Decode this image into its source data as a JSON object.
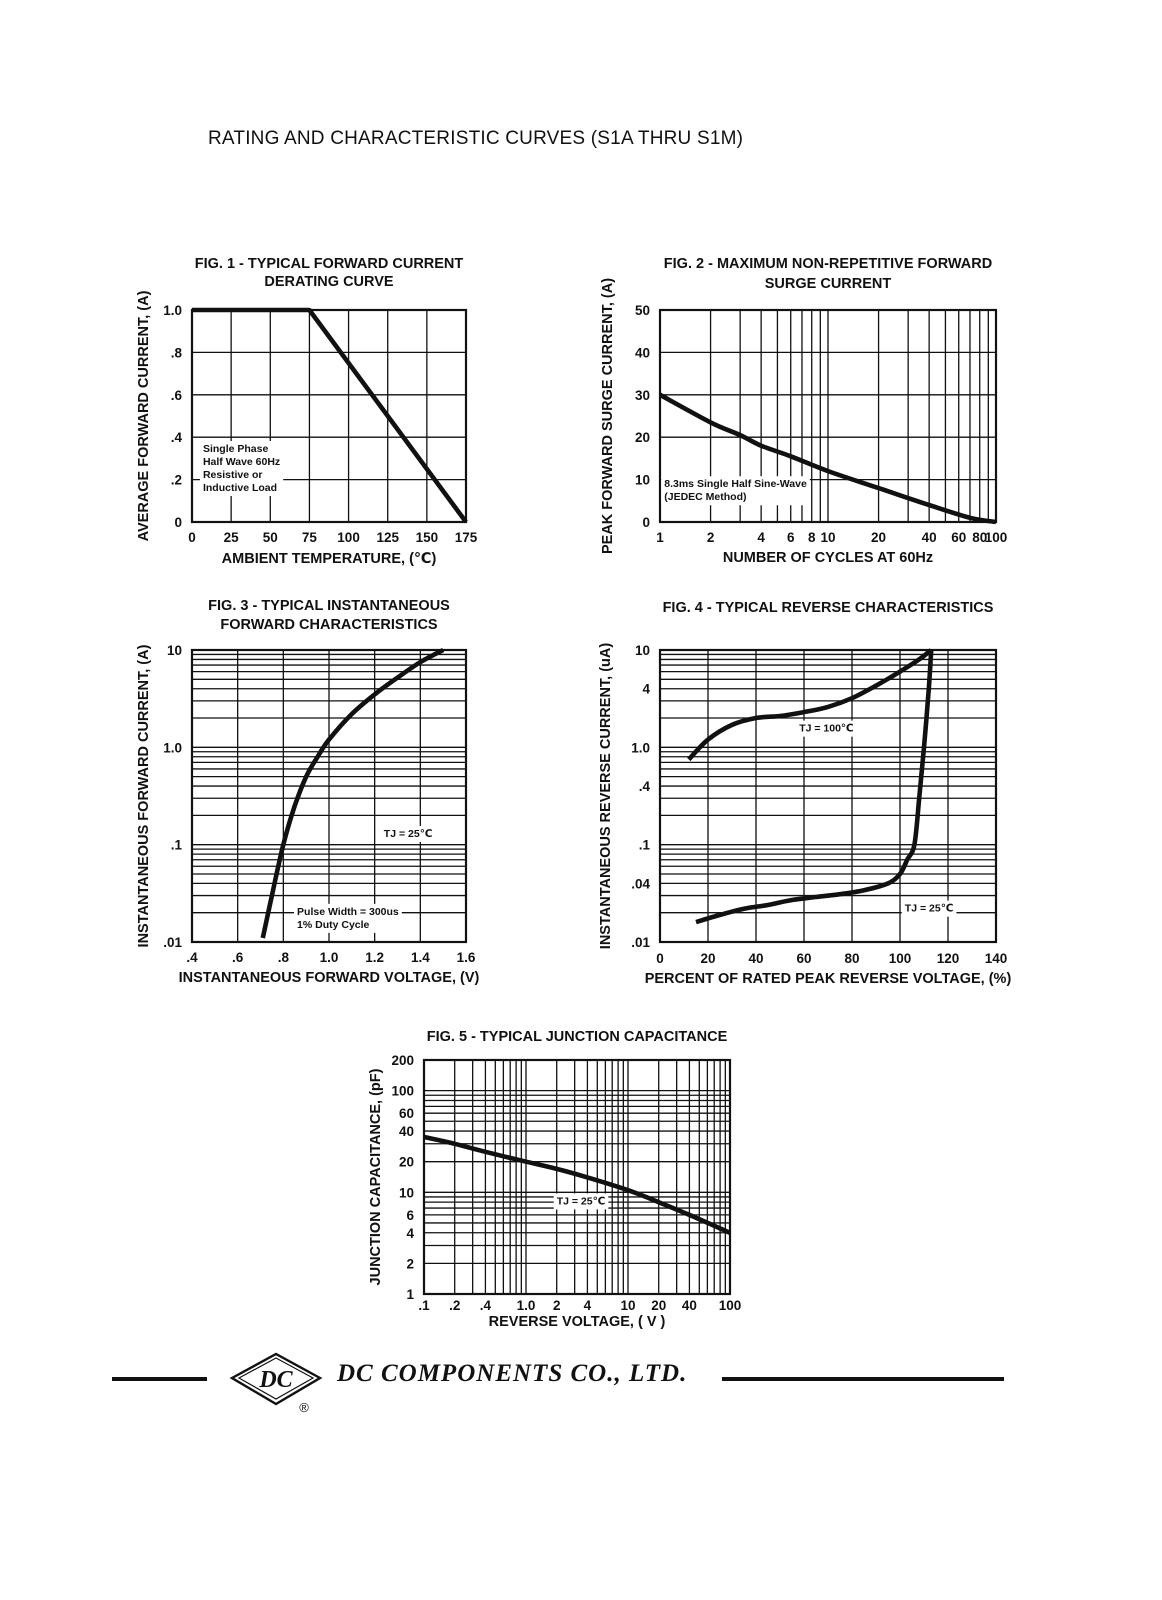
{
  "page": {
    "title": "RATING AND CHARACTERISTIC CURVES (S1A THRU S1M)"
  },
  "footer": {
    "company": "DC COMPONENTS CO., LTD.",
    "logo_text": "DC",
    "registered_mark": "®"
  },
  "chart_data": [
    {
      "id": "fig1",
      "type": "line",
      "title_lines": [
        "FIG. 1 - TYPICAL FORWARD CURRENT",
        "DERATING CURVE"
      ],
      "xlabel": "AMBIENT TEMPERATURE, (℃)",
      "ylabel": "AVERAGE FORWARD CURRENT, (A)",
      "xscale": "linear",
      "yscale": "linear",
      "xlim": [
        0,
        175
      ],
      "ylim": [
        0,
        1.0
      ],
      "xgrid": [
        0,
        25,
        50,
        75,
        100,
        125,
        150,
        175
      ],
      "ygrid": [
        0,
        0.2,
        0.4,
        0.6,
        0.8,
        1.0
      ],
      "xticks": [
        {
          "v": 0,
          "label": "0"
        },
        {
          "v": 25,
          "label": "25"
        },
        {
          "v": 50,
          "label": "50"
        },
        {
          "v": 75,
          "label": "75"
        },
        {
          "v": 100,
          "label": "100"
        },
        {
          "v": 125,
          "label": "125"
        },
        {
          "v": 150,
          "label": "150"
        },
        {
          "v": 175,
          "label": "175"
        }
      ],
      "yticks": [
        {
          "v": 0,
          "label": "0"
        },
        {
          "v": 0.2,
          "label": ".2"
        },
        {
          "v": 0.4,
          "label": ".4"
        },
        {
          "v": 0.6,
          "label": ".6"
        },
        {
          "v": 0.8,
          "label": ".8"
        },
        {
          "v": 1.0,
          "label": "1.0"
        }
      ],
      "series": [
        {
          "name": "derating",
          "x": [
            0,
            75,
            175
          ],
          "y": [
            1.0,
            1.0,
            0
          ]
        }
      ],
      "notes": [
        {
          "lines": [
            "Single Phase",
            "Half Wave 60Hz",
            "Resistive or",
            "Inductive Load"
          ],
          "x": 7,
          "y": 0.33
        }
      ]
    },
    {
      "id": "fig2",
      "type": "line",
      "title_lines": [
        "FIG. 2 - MAXIMUM NON-REPETITIVE FORWARD",
        "SURGE CURRENT"
      ],
      "xlabel": "NUMBER OF CYCLES AT 60Hz",
      "ylabel": "PEAK FORWARD SURGE CURRENT, (A)",
      "xscale": "log",
      "yscale": "linear",
      "xlim": [
        1,
        100
      ],
      "ylim": [
        0,
        50
      ],
      "xgrid": [
        1,
        2,
        3,
        4,
        5,
        6,
        7,
        8,
        9,
        10,
        20,
        30,
        40,
        50,
        60,
        70,
        80,
        90,
        100
      ],
      "ygrid": [
        0,
        10,
        20,
        30,
        40,
        50
      ],
      "xticks": [
        {
          "v": 1,
          "label": "1"
        },
        {
          "v": 2,
          "label": "2"
        },
        {
          "v": 4,
          "label": "4"
        },
        {
          "v": 6,
          "label": "6"
        },
        {
          "v": 8,
          "label": "8"
        },
        {
          "v": 10,
          "label": "10"
        },
        {
          "v": 20,
          "label": "20"
        },
        {
          "v": 40,
          "label": "40"
        },
        {
          "v": 60,
          "label": "60"
        },
        {
          "v": 80,
          "label": "80"
        },
        {
          "v": 100,
          "label": "100"
        }
      ],
      "yticks": [
        {
          "v": 0,
          "label": "0"
        },
        {
          "v": 10,
          "label": "10"
        },
        {
          "v": 20,
          "label": "20"
        },
        {
          "v": 30,
          "label": "30"
        },
        {
          "v": 40,
          "label": "40"
        },
        {
          "v": 50,
          "label": "50"
        }
      ],
      "series": [
        {
          "name": "surge",
          "x": [
            1,
            2,
            3,
            4,
            6,
            10,
            20,
            40,
            70,
            100
          ],
          "y": [
            30,
            23.5,
            20.5,
            18,
            15.5,
            12,
            8,
            4,
            1,
            0
          ]
        }
      ],
      "notes": [
        {
          "lines": [
            "8.3ms Single Half Sine-Wave",
            "(JEDEC Method)"
          ],
          "x": 1.06,
          "y": 8.2
        }
      ]
    },
    {
      "id": "fig3",
      "type": "line",
      "title_lines": [
        "FIG. 3 - TYPICAL INSTANTANEOUS",
        "FORWARD CHARACTERISTICS"
      ],
      "xlabel": "INSTANTANEOUS FORWARD VOLTAGE, (V)",
      "ylabel": "INSTANTANEOUS FORWARD CURRENT, (A)",
      "xscale": "linear",
      "yscale": "log",
      "xlim": [
        0.4,
        1.6
      ],
      "ylim": [
        0.01,
        10
      ],
      "xgrid": [
        0.4,
        0.6,
        0.8,
        1.0,
        1.2,
        1.4,
        1.6
      ],
      "ygrid": [
        0.01,
        0.02,
        0.03,
        0.04,
        0.05,
        0.06,
        0.07,
        0.08,
        0.09,
        0.1,
        0.2,
        0.3,
        0.4,
        0.5,
        0.6,
        0.7,
        0.8,
        0.9,
        1,
        2,
        3,
        4,
        5,
        6,
        7,
        8,
        9,
        10
      ],
      "xticks": [
        {
          "v": 0.4,
          "label": ".4"
        },
        {
          "v": 0.6,
          "label": ".6"
        },
        {
          "v": 0.8,
          "label": ".8"
        },
        {
          "v": 1.0,
          "label": "1.0"
        },
        {
          "v": 1.2,
          "label": "1.2"
        },
        {
          "v": 1.4,
          "label": "1.4"
        },
        {
          "v": 1.6,
          "label": "1.6"
        }
      ],
      "yticks": [
        {
          "v": 0.01,
          "label": ".01"
        },
        {
          "v": 0.1,
          "label": ".1"
        },
        {
          "v": 1,
          "label": "1.0"
        },
        {
          "v": 10,
          "label": "10"
        }
      ],
      "series": [
        {
          "name": "TJ = 25C",
          "x": [
            0.71,
            0.75,
            0.8,
            0.85,
            0.9,
            0.95,
            1.0,
            1.1,
            1.2,
            1.3,
            1.4,
            1.5
          ],
          "y": [
            0.011,
            0.03,
            0.1,
            0.25,
            0.5,
            0.8,
            1.2,
            2.2,
            3.5,
            5.2,
            7.5,
            10
          ]
        }
      ],
      "notes": [
        {
          "lines": [
            "TJ = 25℃"
          ],
          "x": 1.24,
          "y": 0.12
        },
        {
          "lines": [
            "Pulse Width = 300us",
            "1% Duty Cycle"
          ],
          "x": 0.86,
          "y": 0.019
        }
      ]
    },
    {
      "id": "fig4",
      "type": "line",
      "title_lines": [
        "FIG. 4 - TYPICAL REVERSE CHARACTERISTICS"
      ],
      "xlabel": "PERCENT OF RATED PEAK REVERSE VOLTAGE, (%)",
      "ylabel": "INSTANTANEOUS REVERSE CURRENT, (uA)",
      "xscale": "linear",
      "yscale": "log",
      "xlim": [
        0,
        140
      ],
      "ylim": [
        0.01,
        10
      ],
      "xgrid": [
        0,
        20,
        40,
        60,
        80,
        100,
        120,
        140
      ],
      "ygrid": [
        0.01,
        0.02,
        0.03,
        0.04,
        0.05,
        0.06,
        0.07,
        0.08,
        0.09,
        0.1,
        0.2,
        0.3,
        0.4,
        0.5,
        0.6,
        0.7,
        0.8,
        0.9,
        1,
        2,
        3,
        4,
        5,
        6,
        7,
        8,
        9,
        10
      ],
      "xticks": [
        {
          "v": 0,
          "label": "0"
        },
        {
          "v": 20,
          "label": "20"
        },
        {
          "v": 40,
          "label": "40"
        },
        {
          "v": 60,
          "label": "60"
        },
        {
          "v": 80,
          "label": "80"
        },
        {
          "v": 100,
          "label": "100"
        },
        {
          "v": 120,
          "label": "120"
        },
        {
          "v": 140,
          "label": "140"
        }
      ],
      "yticks": [
        {
          "v": 0.01,
          "label": ".01"
        },
        {
          "v": 0.04,
          "label": ".04"
        },
        {
          "v": 0.1,
          "label": ".1"
        },
        {
          "v": 0.4,
          "label": ".4"
        },
        {
          "v": 1,
          "label": "1.0"
        },
        {
          "v": 4,
          "label": "4"
        },
        {
          "v": 10,
          "label": "10"
        }
      ],
      "series": [
        {
          "name": "TJ = 100C",
          "x": [
            12,
            20,
            30,
            40,
            50,
            60,
            70,
            80,
            90,
            100,
            108,
            113
          ],
          "y": [
            0.75,
            1.2,
            1.7,
            2.0,
            2.1,
            2.3,
            2.6,
            3.2,
            4.3,
            6.0,
            8.0,
            10
          ]
        },
        {
          "name": "TJ = 25C",
          "x": [
            15,
            25,
            35,
            45,
            55,
            65,
            75,
            85,
            95,
            100,
            103,
            106,
            108,
            110,
            112,
            113
          ],
          "y": [
            0.016,
            0.019,
            0.022,
            0.024,
            0.027,
            0.029,
            0.031,
            0.034,
            0.04,
            0.05,
            0.07,
            0.1,
            0.3,
            1.0,
            4.0,
            10
          ]
        }
      ],
      "notes": [
        {
          "lines": [
            "TJ = 100℃"
          ],
          "x": 58,
          "y": 1.45
        },
        {
          "lines": [
            "TJ = 25℃"
          ],
          "x": 102,
          "y": 0.0205
        }
      ]
    },
    {
      "id": "fig5",
      "type": "line",
      "title_lines": [
        "FIG. 5 - TYPICAL JUNCTION CAPACITANCE"
      ],
      "xlabel": "REVERSE VOLTAGE, ( V )",
      "ylabel": "JUNCTION CAPACITANCE, (pF)",
      "xscale": "log",
      "yscale": "log",
      "xlim": [
        0.1,
        100
      ],
      "ylim": [
        1,
        200
      ],
      "xgrid": [
        0.1,
        0.2,
        0.3,
        0.4,
        0.5,
        0.6,
        0.7,
        0.8,
        0.9,
        1,
        2,
        3,
        4,
        5,
        6,
        7,
        8,
        9,
        10,
        20,
        30,
        40,
        50,
        60,
        70,
        80,
        90,
        100
      ],
      "ygrid": [
        1,
        2,
        3,
        4,
        5,
        6,
        7,
        8,
        9,
        10,
        20,
        30,
        40,
        50,
        60,
        70,
        80,
        90,
        100,
        200
      ],
      "xticks": [
        {
          "v": 0.1,
          "label": ".1"
        },
        {
          "v": 0.2,
          "label": ".2"
        },
        {
          "v": 0.4,
          "label": ".4"
        },
        {
          "v": 1,
          "label": "1.0"
        },
        {
          "v": 2,
          "label": "2"
        },
        {
          "v": 4,
          "label": "4"
        },
        {
          "v": 10,
          "label": "10"
        },
        {
          "v": 20,
          "label": "20"
        },
        {
          "v": 40,
          "label": "40"
        },
        {
          "v": 100,
          "label": "100"
        }
      ],
      "yticks": [
        {
          "v": 1,
          "label": "1"
        },
        {
          "v": 2,
          "label": "2"
        },
        {
          "v": 4,
          "label": "4"
        },
        {
          "v": 6,
          "label": "6"
        },
        {
          "v": 10,
          "label": "10"
        },
        {
          "v": 20,
          "label": "20"
        },
        {
          "v": 40,
          "label": "40"
        },
        {
          "v": 60,
          "label": "60"
        },
        {
          "v": 100,
          "label": "100"
        },
        {
          "v": 200,
          "label": "200"
        }
      ],
      "series": [
        {
          "name": "TJ = 25C",
          "x": [
            0.1,
            0.2,
            0.4,
            1,
            2,
            4,
            10,
            20,
            40,
            100
          ],
          "y": [
            35,
            30,
            25,
            20,
            17,
            14,
            10.5,
            8,
            6,
            4
          ]
        }
      ],
      "notes": [
        {
          "lines": [
            "TJ = 25℃"
          ],
          "x": 2.0,
          "y": 7.6
        }
      ]
    }
  ]
}
